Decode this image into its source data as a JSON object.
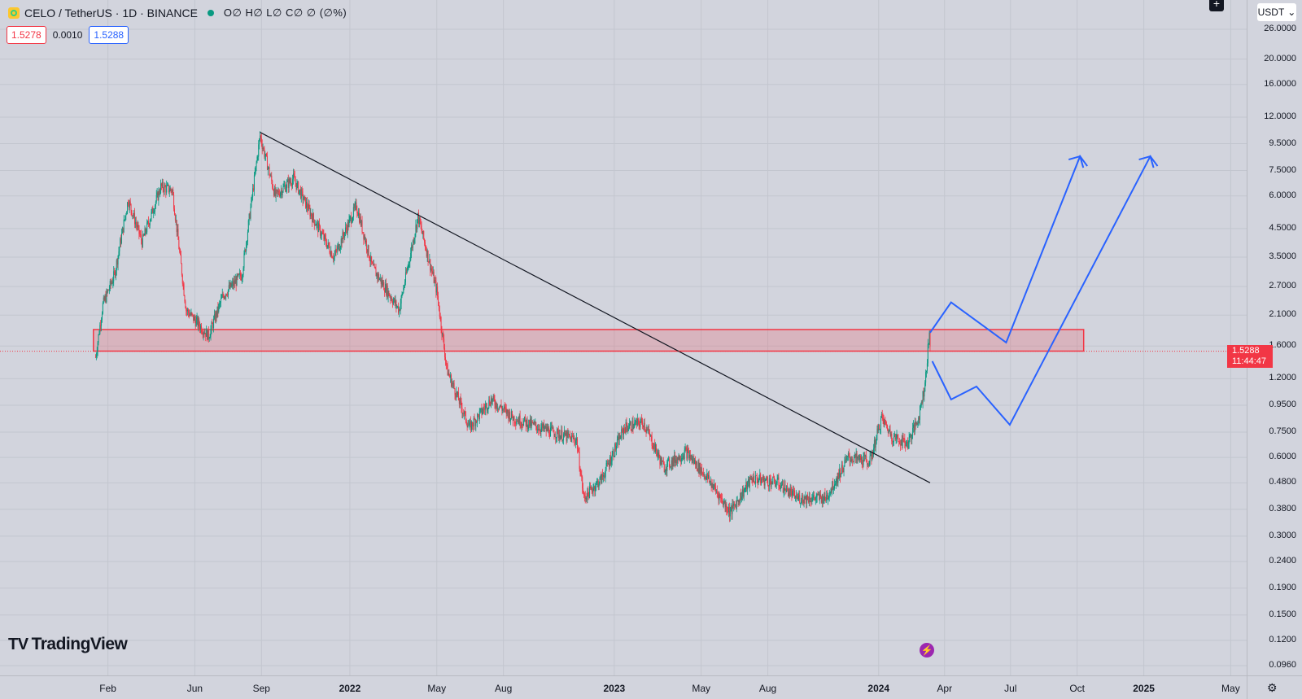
{
  "legend": {
    "symbol": "CELO / TetherUS · 1D · BINANCE",
    "ohlc": "O∅ H∅ L∅ C∅ ∅ (∅%)"
  },
  "quote": {
    "sell": "1.5278",
    "spread": "0.0010",
    "buy": "1.5288"
  },
  "currency": "USDT",
  "last_price": {
    "value": "1.5288",
    "countdown": "11:44:47"
  },
  "price_axis": {
    "scale": "log",
    "ticks": [
      "26.0000",
      "20.0000",
      "16.0000",
      "12.0000",
      "9.5000",
      "7.5000",
      "6.0000",
      "4.5000",
      "3.5000",
      "2.7000",
      "2.1000",
      "1.6000",
      "1.2000",
      "0.9500",
      "0.7500",
      "0.6000",
      "0.4800",
      "0.3800",
      "0.3000",
      "0.2400",
      "0.1900",
      "0.1500",
      "0.1200",
      "0.0960"
    ]
  },
  "time_axis": {
    "ticks": [
      {
        "label": "Feb",
        "bold": false
      },
      {
        "label": "Jun",
        "bold": false
      },
      {
        "label": "Sep",
        "bold": false
      },
      {
        "label": "2022",
        "bold": true
      },
      {
        "label": "May",
        "bold": false
      },
      {
        "label": "Aug",
        "bold": false
      },
      {
        "label": "2023",
        "bold": true
      },
      {
        "label": "May",
        "bold": false
      },
      {
        "label": "Aug",
        "bold": false
      },
      {
        "label": "2024",
        "bold": true
      },
      {
        "label": "Apr",
        "bold": false
      },
      {
        "label": "Jul",
        "bold": false
      },
      {
        "label": "Oct",
        "bold": false
      },
      {
        "label": "2025",
        "bold": true
      },
      {
        "label": "May",
        "bold": false
      }
    ]
  },
  "price_path": [
    {
      "date": "2021-01-15",
      "price": 1.45
    },
    {
      "date": "2021-01-25",
      "price": 2.3
    },
    {
      "date": "2021-02-10",
      "price": 3.0
    },
    {
      "date": "2021-03-01",
      "price": 5.8
    },
    {
      "date": "2021-03-20",
      "price": 4.0
    },
    {
      "date": "2021-04-15",
      "price": 6.5
    },
    {
      "date": "2021-05-01",
      "price": 6.3
    },
    {
      "date": "2021-05-20",
      "price": 2.2
    },
    {
      "date": "2021-06-20",
      "price": 1.75
    },
    {
      "date": "2021-07-10",
      "price": 2.5
    },
    {
      "date": "2021-08-05",
      "price": 3.0
    },
    {
      "date": "2021-08-30",
      "price": 10.2
    },
    {
      "date": "2021-09-20",
      "price": 6.0
    },
    {
      "date": "2021-10-15",
      "price": 7.0
    },
    {
      "date": "2021-11-10",
      "price": 5.0
    },
    {
      "date": "2021-12-10",
      "price": 3.5
    },
    {
      "date": "2022-01-10",
      "price": 5.5
    },
    {
      "date": "2022-02-01",
      "price": 3.2
    },
    {
      "date": "2022-03-10",
      "price": 2.2
    },
    {
      "date": "2022-04-05",
      "price": 5.0
    },
    {
      "date": "2022-05-01",
      "price": 2.6
    },
    {
      "date": "2022-05-15",
      "price": 1.3
    },
    {
      "date": "2022-06-15",
      "price": 0.78
    },
    {
      "date": "2022-07-15",
      "price": 1.0
    },
    {
      "date": "2022-08-15",
      "price": 0.85
    },
    {
      "date": "2022-09-20",
      "price": 0.78
    },
    {
      "date": "2022-11-10",
      "price": 0.7
    },
    {
      "date": "2022-11-20",
      "price": 0.42
    },
    {
      "date": "2022-12-15",
      "price": 0.5
    },
    {
      "date": "2023-01-15",
      "price": 0.78
    },
    {
      "date": "2023-02-10",
      "price": 0.82
    },
    {
      "date": "2023-03-10",
      "price": 0.55
    },
    {
      "date": "2023-04-10",
      "price": 0.63
    },
    {
      "date": "2023-05-10",
      "price": 0.5
    },
    {
      "date": "2023-06-10",
      "price": 0.37
    },
    {
      "date": "2023-07-10",
      "price": 0.5
    },
    {
      "date": "2023-08-15",
      "price": 0.48
    },
    {
      "date": "2023-09-10",
      "price": 0.42
    },
    {
      "date": "2023-10-20",
      "price": 0.42
    },
    {
      "date": "2023-11-20",
      "price": 0.6
    },
    {
      "date": "2023-12-20",
      "price": 0.58
    },
    {
      "date": "2024-01-05",
      "price": 0.85
    },
    {
      "date": "2024-01-20",
      "price": 0.72
    },
    {
      "date": "2024-02-10",
      "price": 0.68
    },
    {
      "date": "2024-02-25",
      "price": 0.85
    },
    {
      "date": "2024-03-05",
      "price": 1.15
    },
    {
      "date": "2024-03-11",
      "price": 1.8
    },
    {
      "date": "2024-03-12",
      "price": 1.5288
    }
  ],
  "drawings": {
    "trendline": {
      "from": {
        "date": "2021-08-30",
        "price": 10.5
      },
      "to": {
        "date": "2024-03-12",
        "price": 0.48
      }
    },
    "zone": {
      "from_date": "2021-01-12",
      "to_date": "2024-10-10",
      "low": 1.53,
      "high": 1.85
    },
    "projection_a": [
      {
        "date": "2024-03-12",
        "price": 1.8
      },
      {
        "date": "2024-04-10",
        "price": 2.35
      },
      {
        "date": "2024-06-25",
        "price": 1.65
      },
      {
        "date": "2024-10-05",
        "price": 8.5
      },
      {
        "date": "2024-10-15",
        "price": 7.8
      }
    ],
    "projection_b": [
      {
        "date": "2024-03-15",
        "price": 1.4
      },
      {
        "date": "2024-04-10",
        "price": 1.0
      },
      {
        "date": "2024-05-15",
        "price": 1.12
      },
      {
        "date": "2024-06-30",
        "price": 0.8
      },
      {
        "date": "2025-01-10",
        "price": 8.5
      },
      {
        "date": "2025-01-20",
        "price": 7.8
      }
    ]
  },
  "colors": {
    "up": "#089981",
    "down": "#f23645",
    "trend": "#131722",
    "zone_fill": "#f2364533",
    "zone_stroke": "#f23645",
    "projection": "#2962ff",
    "last_line": "#f23645"
  },
  "branding": {
    "logo_text": "TradingView"
  }
}
